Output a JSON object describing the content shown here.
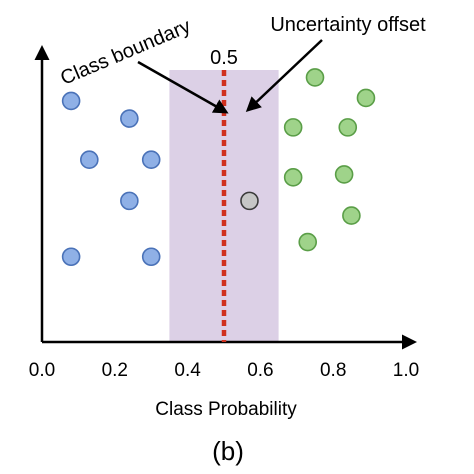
{
  "chart_data": {
    "type": "scatter",
    "title": "",
    "xlabel": "Class Probability",
    "ylabel": "",
    "xlim": [
      0.0,
      1.0
    ],
    "x_ticks": [
      "0.0",
      "0.2",
      "0.4",
      "0.6",
      "0.8",
      "1.0"
    ],
    "grid": false,
    "threshold": {
      "x": 0.5,
      "label": "0.5",
      "color": "#d0301e"
    },
    "uncertainty_band": {
      "from": 0.35,
      "to": 0.65,
      "color": "#dcd0e6"
    },
    "series": [
      {
        "color": "#8fb0e6",
        "stroke": "#4a72b8",
        "points": [
          {
            "x": 0.08,
            "y": 0.82
          },
          {
            "x": 0.24,
            "y": 0.76
          },
          {
            "x": 0.13,
            "y": 0.62
          },
          {
            "x": 0.3,
            "y": 0.62
          },
          {
            "x": 0.24,
            "y": 0.48
          },
          {
            "x": 0.08,
            "y": 0.29
          },
          {
            "x": 0.3,
            "y": 0.29
          }
        ]
      },
      {
        "color": "#c6c6c6",
        "stroke": "#3a3a3a",
        "points": [
          {
            "x": 0.57,
            "y": 0.48
          }
        ]
      },
      {
        "color": "#9fd38a",
        "stroke": "#5a9e47",
        "points": [
          {
            "x": 0.75,
            "y": 0.9
          },
          {
            "x": 0.89,
            "y": 0.83
          },
          {
            "x": 0.69,
            "y": 0.73
          },
          {
            "x": 0.84,
            "y": 0.73
          },
          {
            "x": 0.69,
            "y": 0.56
          },
          {
            "x": 0.83,
            "y": 0.57
          },
          {
            "x": 0.85,
            "y": 0.43
          },
          {
            "x": 0.73,
            "y": 0.34
          }
        ]
      }
    ],
    "annotations": [
      {
        "text": "Class boundary",
        "points_to": "boundary"
      },
      {
        "text": "Uncertainty offset",
        "points_to": "offset"
      }
    ]
  },
  "panel_label": "(b)"
}
